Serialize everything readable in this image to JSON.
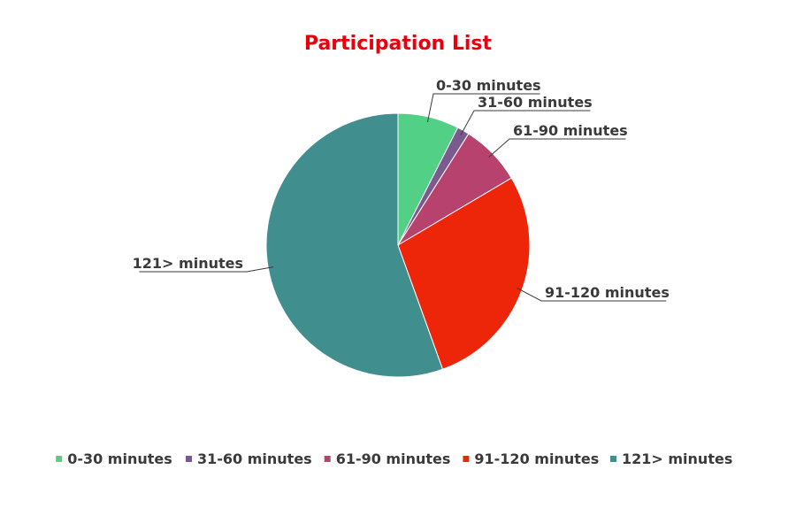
{
  "chart_data": {
    "type": "pie",
    "title": "Participation List",
    "legend_position": "bottom",
    "slices": [
      {
        "name": "0-30 minutes",
        "value": 7.5,
        "color": "#52d186"
      },
      {
        "name": "31-60 minutes",
        "value": 1.5,
        "color": "#7b5b8e"
      },
      {
        "name": "61-90 minutes",
        "value": 7.5,
        "color": "#b8426e"
      },
      {
        "name": "91-120 minutes",
        "value": 28.0,
        "color": "#ee2609"
      },
      {
        "name": "121> minutes",
        "value": 55.5,
        "color": "#408f8e"
      }
    ]
  }
}
